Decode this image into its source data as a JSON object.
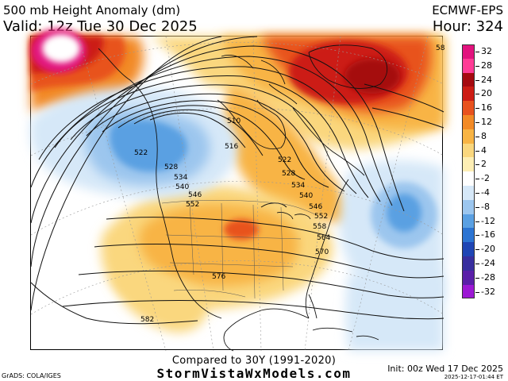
{
  "header": {
    "title": "500 mb Height Anomaly (dm)",
    "valid": "Valid: 12z Tue 30 Dec 2025",
    "model": "ECMWF-EPS",
    "hour": "Hour: 324"
  },
  "map": {
    "field": "500 mb Height Anomaly",
    "contour_labels": [
      "510",
      "516",
      "522",
      "522",
      "528",
      "528",
      "534",
      "534",
      "540",
      "540",
      "546",
      "546",
      "552",
      "552",
      "558",
      "564",
      "570",
      "576",
      "582",
      "58"
    ]
  },
  "colorbar": {
    "labels": [
      "32",
      "28",
      "24",
      "20",
      "16",
      "12",
      "8",
      "4",
      "2",
      "-2",
      "-4",
      "-8",
      "-12",
      "-16",
      "-20",
      "-24",
      "-28",
      "-32"
    ],
    "colors": [
      "#e2137e",
      "#ff3c96",
      "#a50a10",
      "#cc1c14",
      "#e8521e",
      "#f28a26",
      "#f8b444",
      "#fad77e",
      "#fdeeb4",
      "#ffffff",
      "#d6e8f8",
      "#9cc6ee",
      "#5aa0e2",
      "#2c74d2",
      "#1f45b4",
      "#382e9e",
      "#5a1fa8",
      "#9c18d4"
    ]
  },
  "footer": {
    "compare": "Compared to 30Y (1991-2020)",
    "site": "StormVistaWxModels.com",
    "credit": "GrADS: COLA/IGES",
    "init": "Init: 00z Wed 17 Dec 2025",
    "timestamp": "2025-12-17-01:44 ET"
  }
}
